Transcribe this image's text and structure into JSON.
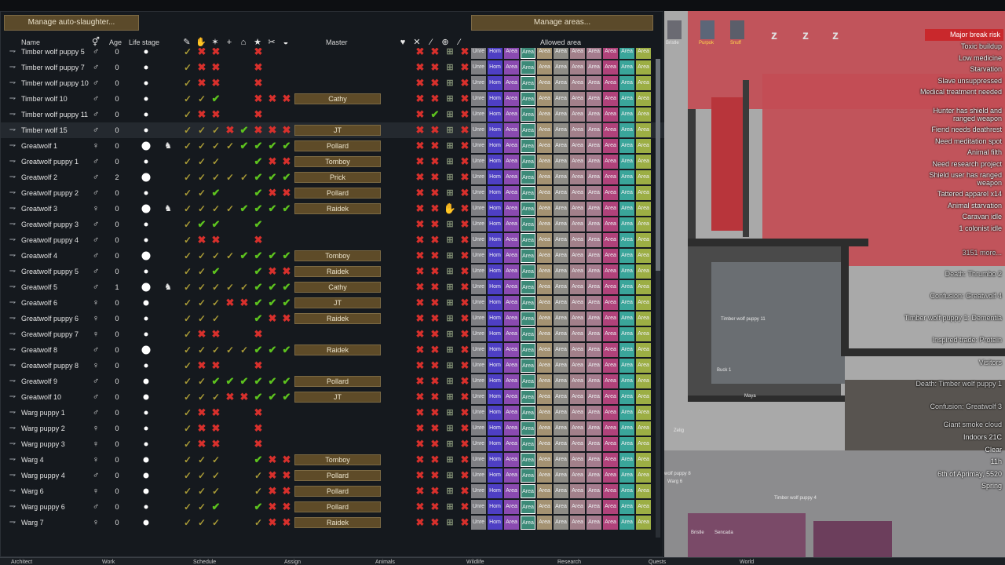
{
  "buttons": {
    "slaughter": "Manage auto-slaughter...",
    "areas": "Manage areas..."
  },
  "headers": {
    "name": "Name",
    "age": "Age",
    "life": "Life stage",
    "master": "Master",
    "allowed": "Allowed area"
  },
  "header_icons": [
    "fav-icon",
    "hand-icon",
    "obedience-icon",
    "plus-icon",
    "house-icon",
    "star-icon",
    "scissors-icon",
    "bag-icon"
  ],
  "med_icons": [
    "heart-icon",
    "crossed-tools-icon",
    "knife-icon",
    "medicine-icon",
    "blade-icon"
  ],
  "rows": [
    {
      "name": "Timber wolf puppy 5",
      "sex": "♂",
      "age": "0",
      "life": "s",
      "preg": false,
      "train": [
        "p",
        "x",
        "x",
        "",
        "",
        "x",
        "",
        ""
      ],
      "master": "",
      "med": [
        "x",
        "x",
        "b",
        "x"
      ]
    },
    {
      "name": "Timber wolf puppy 7",
      "sex": "♂",
      "age": "0",
      "life": "s",
      "preg": false,
      "train": [
        "p",
        "x",
        "x",
        "",
        "",
        "x",
        "",
        ""
      ],
      "master": "",
      "med": [
        "x",
        "x",
        "b",
        "x"
      ]
    },
    {
      "name": "Timber wolf puppy 10",
      "sex": "♂",
      "age": "0",
      "life": "s",
      "preg": false,
      "train": [
        "p",
        "x",
        "x",
        "",
        "",
        "x",
        "",
        ""
      ],
      "master": "",
      "med": [
        "x",
        "x",
        "b",
        "x"
      ]
    },
    {
      "name": "Timber wolf 10",
      "sex": "♂",
      "age": "0",
      "life": "s",
      "preg": false,
      "train": [
        "p",
        "p",
        "c",
        "",
        "",
        "x",
        "x",
        "x"
      ],
      "master": "Cathy",
      "med": [
        "x",
        "x",
        "b",
        "x"
      ]
    },
    {
      "name": "Timber wolf puppy 11",
      "sex": "♂",
      "age": "0",
      "life": "s",
      "preg": false,
      "train": [
        "p",
        "x",
        "x",
        "",
        "",
        "x",
        "",
        ""
      ],
      "master": "",
      "med": [
        "",
        "x",
        "c",
        "b",
        "x"
      ]
    },
    {
      "name": "Timber wolf 15",
      "sex": "♂",
      "age": "0",
      "life": "s",
      "preg": false,
      "train": [
        "p",
        "p",
        "p",
        "x",
        "c",
        "x",
        "x",
        "x"
      ],
      "master": "JT",
      "med": [
        "x",
        "x",
        "b",
        "x"
      ]
    },
    {
      "name": "Greatwolf 1",
      "sex": "♀",
      "age": "0",
      "life": "l",
      "preg": true,
      "train": [
        "p",
        "p",
        "p",
        "p",
        "c",
        "c",
        "c",
        "c"
      ],
      "master": "Pollard",
      "med": [
        "x",
        "x",
        "b",
        "x"
      ]
    },
    {
      "name": "Greatwolf puppy 1",
      "sex": "♂",
      "age": "0",
      "life": "s",
      "preg": false,
      "train": [
        "p",
        "p",
        "p",
        "",
        "",
        "c",
        "x",
        "x"
      ],
      "master": "Tomboy",
      "med": [
        "x",
        "x",
        "b",
        "x"
      ]
    },
    {
      "name": "Greatwolf 2",
      "sex": "♂",
      "age": "2",
      "life": "l",
      "preg": false,
      "train": [
        "p",
        "p",
        "p",
        "p",
        "p",
        "c",
        "c",
        "c"
      ],
      "master": "Prick",
      "med": [
        "x",
        "x",
        "b",
        "x"
      ]
    },
    {
      "name": "Greatwolf puppy 2",
      "sex": "♂",
      "age": "0",
      "life": "s",
      "preg": false,
      "train": [
        "p",
        "p",
        "c",
        "",
        "",
        "c",
        "x",
        "x"
      ],
      "master": "Pollard",
      "med": [
        "x",
        "x",
        "b",
        "x"
      ]
    },
    {
      "name": "Greatwolf 3",
      "sex": "♀",
      "age": "0",
      "life": "l",
      "preg": true,
      "train": [
        "p",
        "p",
        "p",
        "p",
        "c",
        "c",
        "c",
        "c"
      ],
      "master": "Raidek",
      "med": [
        "x",
        "x",
        "h",
        "x"
      ]
    },
    {
      "name": "Greatwolf puppy 3",
      "sex": "♂",
      "age": "0",
      "life": "s",
      "preg": false,
      "train": [
        "p",
        "c",
        "c",
        "",
        "",
        "c",
        "",
        ""
      ],
      "master": "",
      "med": [
        "x",
        "x",
        "b",
        "x"
      ]
    },
    {
      "name": "Greatwolf puppy 4",
      "sex": "♂",
      "age": "0",
      "life": "s",
      "preg": false,
      "train": [
        "p",
        "x",
        "x",
        "",
        "",
        "x",
        "",
        ""
      ],
      "master": "",
      "med": [
        "x",
        "x",
        "b",
        "x"
      ]
    },
    {
      "name": "Greatwolf 4",
      "sex": "♂",
      "age": "0",
      "life": "l",
      "preg": false,
      "train": [
        "p",
        "p",
        "p",
        "p",
        "c",
        "c",
        "c",
        "c"
      ],
      "master": "Tomboy",
      "med": [
        "x",
        "x",
        "b",
        "x"
      ]
    },
    {
      "name": "Greatwolf puppy 5",
      "sex": "♂",
      "age": "0",
      "life": "s",
      "preg": false,
      "train": [
        "p",
        "p",
        "c",
        "",
        "",
        "c",
        "x",
        "x"
      ],
      "master": "Raidek",
      "med": [
        "x",
        "x",
        "b",
        "x"
      ]
    },
    {
      "name": "Greatwolf 5",
      "sex": "♂",
      "age": "1",
      "life": "l",
      "preg": true,
      "train": [
        "p",
        "p",
        "p",
        "p",
        "p",
        "c",
        "c",
        "c"
      ],
      "master": "Cathy",
      "med": [
        "x",
        "x",
        "b",
        "x"
      ]
    },
    {
      "name": "Greatwolf 6",
      "sex": "♀",
      "age": "0",
      "life": "m",
      "preg": false,
      "train": [
        "p",
        "p",
        "p",
        "x",
        "x",
        "c",
        "c",
        "c"
      ],
      "master": "JT",
      "med": [
        "x",
        "x",
        "b",
        "x"
      ]
    },
    {
      "name": "Greatwolf puppy 6",
      "sex": "♀",
      "age": "0",
      "life": "s",
      "preg": false,
      "train": [
        "p",
        "p",
        "p",
        "",
        "",
        "c",
        "x",
        "x"
      ],
      "master": "Raidek",
      "med": [
        "x",
        "x",
        "b",
        "x"
      ]
    },
    {
      "name": "Greatwolf puppy 7",
      "sex": "♀",
      "age": "0",
      "life": "s",
      "preg": false,
      "train": [
        "p",
        "x",
        "x",
        "",
        "",
        "x",
        "",
        ""
      ],
      "master": "",
      "med": [
        "x",
        "x",
        "b",
        "x"
      ]
    },
    {
      "name": "Greatwolf 8",
      "sex": "♂",
      "age": "0",
      "life": "l",
      "preg": false,
      "train": [
        "p",
        "p",
        "p",
        "p",
        "p",
        "c",
        "c",
        "c"
      ],
      "master": "Raidek",
      "med": [
        "x",
        "x",
        "b",
        "x"
      ]
    },
    {
      "name": "Greatwolf puppy 8",
      "sex": "♀",
      "age": "0",
      "life": "s",
      "preg": false,
      "train": [
        "p",
        "x",
        "x",
        "",
        "",
        "x",
        "",
        ""
      ],
      "master": "",
      "med": [
        "x",
        "x",
        "b",
        "x"
      ]
    },
    {
      "name": "Greatwolf 9",
      "sex": "♂",
      "age": "0",
      "life": "m",
      "preg": false,
      "train": [
        "p",
        "p",
        "c",
        "c",
        "c",
        "c",
        "c",
        "c"
      ],
      "master": "Pollard",
      "med": [
        "x",
        "x",
        "b",
        "x"
      ]
    },
    {
      "name": "Greatwolf 10",
      "sex": "♂",
      "age": "0",
      "life": "m",
      "preg": false,
      "train": [
        "p",
        "p",
        "p",
        "x",
        "x",
        "c",
        "c",
        "c"
      ],
      "master": "JT",
      "med": [
        "x",
        "x",
        "b",
        "x"
      ]
    },
    {
      "name": "Warg puppy 1",
      "sex": "♂",
      "age": "0",
      "life": "s",
      "preg": false,
      "train": [
        "p",
        "x",
        "x",
        "",
        "",
        "x",
        "",
        ""
      ],
      "master": "",
      "med": [
        "x",
        "x",
        "b",
        "x"
      ]
    },
    {
      "name": "Warg puppy 2",
      "sex": "♀",
      "age": "0",
      "life": "s",
      "preg": false,
      "train": [
        "p",
        "x",
        "x",
        "",
        "",
        "x",
        "",
        ""
      ],
      "master": "",
      "med": [
        "x",
        "x",
        "b",
        "x"
      ]
    },
    {
      "name": "Warg puppy 3",
      "sex": "♀",
      "age": "0",
      "life": "s",
      "preg": false,
      "train": [
        "p",
        "x",
        "x",
        "",
        "",
        "x",
        "",
        ""
      ],
      "master": "",
      "med": [
        "x",
        "x",
        "b",
        "x"
      ]
    },
    {
      "name": "Warg 4",
      "sex": "♀",
      "age": "0",
      "life": "m",
      "preg": false,
      "train": [
        "p",
        "p",
        "p",
        "",
        "",
        "c",
        "x",
        "x"
      ],
      "master": "Tomboy",
      "med": [
        "x",
        "x",
        "b",
        "x"
      ]
    },
    {
      "name": "Warg puppy 4",
      "sex": "♂",
      "age": "0",
      "life": "m",
      "preg": false,
      "train": [
        "p",
        "p",
        "p",
        "",
        "",
        "p",
        "x",
        "x"
      ],
      "master": "Pollard",
      "med": [
        "x",
        "x",
        "b",
        "x"
      ]
    },
    {
      "name": "Warg 6",
      "sex": "♀",
      "age": "0",
      "life": "m",
      "preg": false,
      "train": [
        "p",
        "p",
        "p",
        "",
        "",
        "p",
        "x",
        "x"
      ],
      "master": "Pollard",
      "med": [
        "x",
        "x",
        "b",
        "x"
      ]
    },
    {
      "name": "Warg puppy 6",
      "sex": "♂",
      "age": "0",
      "life": "s",
      "preg": false,
      "train": [
        "p",
        "p",
        "c",
        "",
        "",
        "c",
        "x",
        "x"
      ],
      "master": "Pollard",
      "med": [
        "x",
        "x",
        "b",
        "x"
      ]
    },
    {
      "name": "Warg 7",
      "sex": "♀",
      "age": "0",
      "life": "m",
      "preg": false,
      "train": [
        "p",
        "p",
        "p",
        "",
        "",
        "p",
        "x",
        "x"
      ],
      "master": "Raidek",
      "med": [
        "x",
        "x",
        "b",
        "x"
      ]
    }
  ],
  "areas": [
    {
      "label": "Unre",
      "color": "#7f7f83"
    },
    {
      "label": "Hom",
      "color": "#4e3fc4"
    },
    {
      "label": "Area",
      "color": "#8a4ab0"
    },
    {
      "label": "Area",
      "color": "#3d8a78"
    },
    {
      "label": "Area",
      "color": "#a49272"
    },
    {
      "label": "Area",
      "color": "#8e8c86"
    },
    {
      "label": "Area",
      "color": "#a2808a"
    },
    {
      "label": "Area",
      "color": "#a57c8e"
    },
    {
      "label": "Area",
      "color": "#b0427a"
    },
    {
      "label": "Area",
      "color": "#3aa59a"
    },
    {
      "label": "Area",
      "color": "#9cae44"
    }
  ],
  "area_selected_col": 3,
  "map": {
    "alerts": [
      "Toxic buildup",
      "Low medicine",
      "Starvation",
      "Slave unsuppressed",
      "Medical treatment needed",
      "Hunter has shield and ranged weapon",
      "Fiend needs deathrest",
      "Need meditation spot",
      "Animal filth",
      "Need research project",
      "Shield user has ranged weapon",
      "Tattered apparel x14",
      "Animal starvation",
      "Caravan idle",
      "1 colonist idle"
    ],
    "major_alert": "Major break risk",
    "more_label": "3151 more...",
    "messages": [
      "Death: Thrumbo 2",
      "Confusion: Greatwolf 4",
      "Timber wolf puppy 1: Dementia",
      "Inspired trade: Protein",
      "Visitors",
      "Death: Timber wolf puppy 1",
      "Confusion: Greatwolf 3",
      "Giant smoke cloud"
    ],
    "weather": [
      "Indoors 21C",
      "Clear",
      "11h",
      "6th of Aprimay, 5520",
      "Spring"
    ],
    "pawn_labels": [
      "Bristle",
      "Purpok",
      "Snuff"
    ],
    "map_labels": [
      "Timber wolf puppy 11",
      "Buck 1",
      "Maya",
      "Zelig",
      "wolf puppy 8",
      "Warg 6",
      "Timber wolf puppy 4",
      "Bristle",
      "Sencada"
    ]
  },
  "bottom_tabs": [
    "Architect",
    "Work",
    "Schedule",
    "Assign",
    "Animals",
    "Wildlife",
    "Research",
    "Quests",
    "World"
  ]
}
